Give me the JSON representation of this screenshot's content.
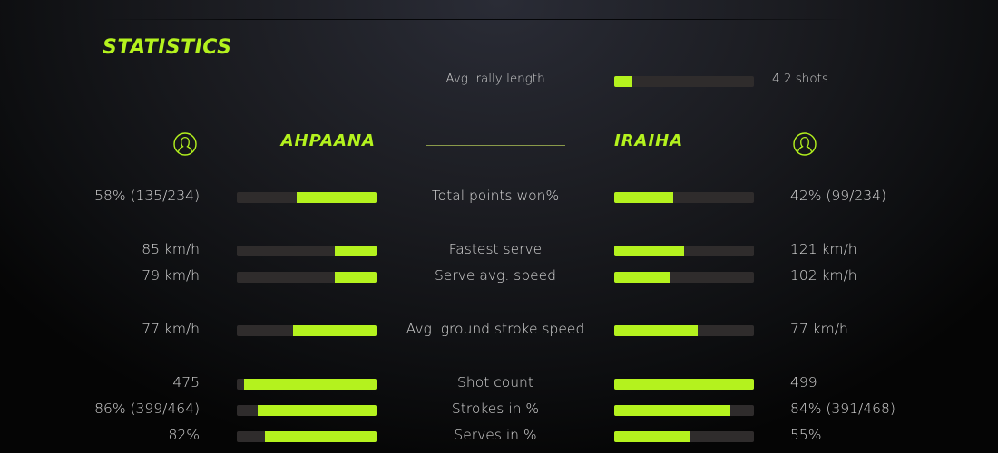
{
  "title": "STATISTICS",
  "colors": {
    "accent": "#b4f21e",
    "bar_track": "#2f2c2c"
  },
  "rally": {
    "label": "Avg. rally length",
    "value": "4.2 shots",
    "fill_pct": 13
  },
  "players": {
    "left": {
      "name": "AHPAANA",
      "icon": "user-icon"
    },
    "right": {
      "name": "IRAIHA",
      "icon": "user-icon"
    }
  },
  "stats": [
    {
      "label": "Total points won%",
      "left": "58% (135/234)",
      "right": "42% (99/234)",
      "left_pct": 57,
      "right_pct": 42
    },
    {
      "label": "Fastest serve",
      "left": "85 km/h",
      "right": "121 km/h",
      "left_pct": 30,
      "right_pct": 50
    },
    {
      "label": "Serve avg. speed",
      "left": "79 km/h",
      "right": "102 km/h",
      "left_pct": 30,
      "right_pct": 40
    },
    {
      "label": "Avg. ground stroke speed",
      "left": "77 km/h",
      "right": "77 km/h",
      "left_pct": 60,
      "right_pct": 60
    },
    {
      "label": "Shot count",
      "left": "475",
      "right": "499",
      "left_pct": 95,
      "right_pct": 100
    },
    {
      "label": "Strokes in %",
      "left": "86% (399/464)",
      "right": "84% (391/468)",
      "left_pct": 85,
      "right_pct": 83
    },
    {
      "label": "Serves in %",
      "left": "82%",
      "right": "55%",
      "left_pct": 80,
      "right_pct": 54
    }
  ]
}
